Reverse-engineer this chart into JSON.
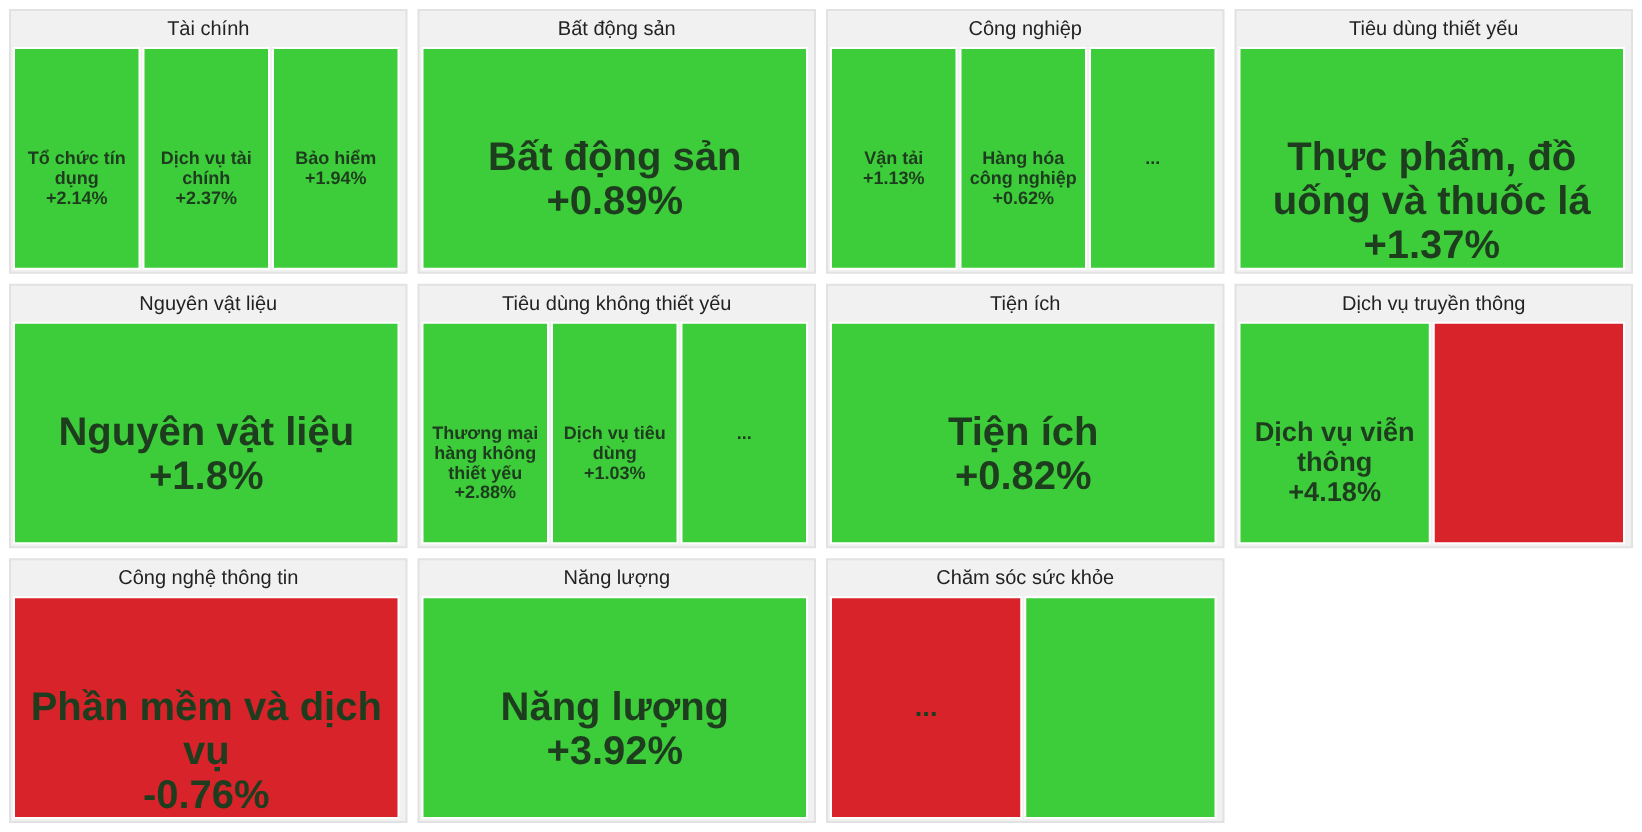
{
  "chart_data": {
    "type": "other",
    "categories": [
      "Tổ chức tín dụng",
      "Dịch vụ tài chính",
      "Bảo hiểm",
      "Bất động sản",
      "Vận tải",
      "Hàng hóa công nghiệp",
      "...",
      "Thực phẩm, đồ uống và thuốc lá",
      "Nguyên vật liệu",
      "Thương mại hàng không thiết yếu",
      "Dịch vụ tiêu dùng",
      "...",
      "Tiện ích",
      "Dịch vụ viễn thông",
      null,
      "Phần mềm và dịch vụ",
      "Năng lượng",
      "...",
      null
    ],
    "series": [
      {
        "name": "Tài chính",
        "values": [
          2.14,
          2.37,
          1.94,
          null,
          null,
          null,
          null,
          null,
          null,
          null,
          null,
          null,
          null,
          null,
          null,
          null,
          null,
          null,
          null
        ],
        "value_labels": [
          "+2.14%",
          "+2.37%",
          "+1.94%",
          null,
          null,
          null,
          null,
          null,
          null,
          null,
          null,
          null,
          null,
          null,
          null,
          null,
          null,
          null,
          null
        ],
        "colors": [
          "#3dcc3a",
          "#3dcc3a",
          "#3dcc3a",
          null,
          null,
          null,
          null,
          null,
          null,
          null,
          null,
          null,
          null,
          null,
          null,
          null,
          null,
          null,
          null
        ]
      },
      {
        "name": "Bất động sản",
        "values": [
          null,
          null,
          null,
          0.89,
          null,
          null,
          null,
          null,
          null,
          null,
          null,
          null,
          null,
          null,
          null,
          null,
          null,
          null,
          null
        ],
        "value_labels": [
          null,
          null,
          null,
          "+0.89%",
          null,
          null,
          null,
          null,
          null,
          null,
          null,
          null,
          null,
          null,
          null,
          null,
          null,
          null,
          null
        ],
        "colors": [
          null,
          null,
          null,
          "#3dcc3a",
          null,
          null,
          null,
          null,
          null,
          null,
          null,
          null,
          null,
          null,
          null,
          null,
          null,
          null,
          null
        ]
      },
      {
        "name": "Công nghiệp",
        "values": [
          null,
          null,
          null,
          null,
          1.13,
          0.62,
          null,
          null,
          null,
          null,
          null,
          null,
          null,
          null,
          null,
          null,
          null,
          null,
          null
        ],
        "value_labels": [
          null,
          null,
          null,
          null,
          "+1.13%",
          "+0.62%",
          null,
          null,
          null,
          null,
          null,
          null,
          null,
          null,
          null,
          null,
          null,
          null,
          null
        ],
        "colors": [
          null,
          null,
          null,
          null,
          "#3dcc3a",
          "#3dcc3a",
          "#3dcc3a",
          null,
          null,
          null,
          null,
          null,
          null,
          null,
          null,
          null,
          null,
          null,
          null
        ]
      },
      {
        "name": "Tiêu dùng thiết yếu",
        "values": [
          null,
          null,
          null,
          null,
          null,
          null,
          null,
          1.37,
          null,
          null,
          null,
          null,
          null,
          null,
          null,
          null,
          null,
          null,
          null
        ],
        "value_labels": [
          null,
          null,
          null,
          null,
          null,
          null,
          null,
          "+1.37%",
          null,
          null,
          null,
          null,
          null,
          null,
          null,
          null,
          null,
          null,
          null
        ],
        "colors": [
          null,
          null,
          null,
          null,
          null,
          null,
          null,
          "#3dcc3a",
          null,
          null,
          null,
          null,
          null,
          null,
          null,
          null,
          null,
          null,
          null
        ]
      },
      {
        "name": "Nguyên vật liệu",
        "values": [
          null,
          null,
          null,
          null,
          null,
          null,
          null,
          null,
          1.8,
          null,
          null,
          null,
          null,
          null,
          null,
          null,
          null,
          null,
          null
        ],
        "value_labels": [
          null,
          null,
          null,
          null,
          null,
          null,
          null,
          null,
          "+1.8%",
          null,
          null,
          null,
          null,
          null,
          null,
          null,
          null,
          null,
          null
        ],
        "colors": [
          null,
          null,
          null,
          null,
          null,
          null,
          null,
          null,
          "#3dcc3a",
          null,
          null,
          null,
          null,
          null,
          null,
          null,
          null,
          null,
          null
        ]
      },
      {
        "name": "Tiêu dùng không thiết yếu",
        "values": [
          null,
          null,
          null,
          null,
          null,
          null,
          null,
          null,
          null,
          2.88,
          1.03,
          null,
          null,
          null,
          null,
          null,
          null,
          null,
          null
        ],
        "value_labels": [
          null,
          null,
          null,
          null,
          null,
          null,
          null,
          null,
          null,
          "+2.88%",
          "+1.03%",
          null,
          null,
          null,
          null,
          null,
          null,
          null,
          null
        ],
        "colors": [
          null,
          null,
          null,
          null,
          null,
          null,
          null,
          null,
          null,
          "#3dcc3a",
          "#3dcc3a",
          "#3dcc3a",
          null,
          null,
          null,
          null,
          null,
          null,
          null
        ]
      },
      {
        "name": "Tiện ích",
        "values": [
          null,
          null,
          null,
          null,
          null,
          null,
          null,
          null,
          null,
          null,
          null,
          null,
          0.82,
          null,
          null,
          null,
          null,
          null,
          null
        ],
        "value_labels": [
          null,
          null,
          null,
          null,
          null,
          null,
          null,
          null,
          null,
          null,
          null,
          null,
          "+0.82%",
          null,
          null,
          null,
          null,
          null,
          null
        ],
        "colors": [
          null,
          null,
          null,
          null,
          null,
          null,
          null,
          null,
          null,
          null,
          null,
          null,
          "#3dcc3a",
          null,
          null,
          null,
          null,
          null,
          null
        ]
      },
      {
        "name": "Dịch vụ truyền thông",
        "values": [
          null,
          null,
          null,
          null,
          null,
          null,
          null,
          null,
          null,
          null,
          null,
          null,
          null,
          4.18,
          null,
          null,
          null,
          null,
          null
        ],
        "value_labels": [
          null,
          null,
          null,
          null,
          null,
          null,
          null,
          null,
          null,
          null,
          null,
          null,
          null,
          "+4.18%",
          null,
          null,
          null,
          null,
          null
        ],
        "colors": [
          null,
          null,
          null,
          null,
          null,
          null,
          null,
          null,
          null,
          null,
          null,
          null,
          null,
          "#3dcc3a",
          "#d9232b",
          null,
          null,
          null,
          null
        ]
      },
      {
        "name": "Công nghệ thông tin",
        "values": [
          null,
          null,
          null,
          null,
          null,
          null,
          null,
          null,
          null,
          null,
          null,
          null,
          null,
          null,
          null,
          -0.76,
          null,
          null,
          null
        ],
        "value_labels": [
          null,
          null,
          null,
          null,
          null,
          null,
          null,
          null,
          null,
          null,
          null,
          null,
          null,
          null,
          null,
          "-0.76%",
          null,
          null,
          null
        ],
        "colors": [
          null,
          null,
          null,
          null,
          null,
          null,
          null,
          null,
          null,
          null,
          null,
          null,
          null,
          null,
          null,
          "#d9232b",
          null,
          null,
          null
        ]
      },
      {
        "name": "Năng lượng",
        "values": [
          null,
          null,
          null,
          null,
          null,
          null,
          null,
          null,
          null,
          null,
          null,
          null,
          null,
          null,
          null,
          null,
          3.92,
          null,
          null
        ],
        "value_labels": [
          null,
          null,
          null,
          null,
          null,
          null,
          null,
          null,
          null,
          null,
          null,
          null,
          null,
          null,
          null,
          null,
          "+3.92%",
          null,
          null
        ],
        "colors": [
          null,
          null,
          null,
          null,
          null,
          null,
          null,
          null,
          null,
          null,
          null,
          null,
          null,
          null,
          null,
          null,
          "#3dcc3a",
          null,
          null
        ]
      },
      {
        "name": "Chăm sóc sức khỏe",
        "values": [
          null,
          null,
          null,
          null,
          null,
          null,
          null,
          null,
          null,
          null,
          null,
          null,
          null,
          null,
          null,
          null,
          null,
          null,
          null
        ],
        "colors": [
          null,
          null,
          null,
          null,
          null,
          null,
          null,
          null,
          null,
          null,
          null,
          null,
          null,
          null,
          null,
          null,
          null,
          "#d9232b",
          "#3dcc3a"
        ]
      }
    ]
  }
}
